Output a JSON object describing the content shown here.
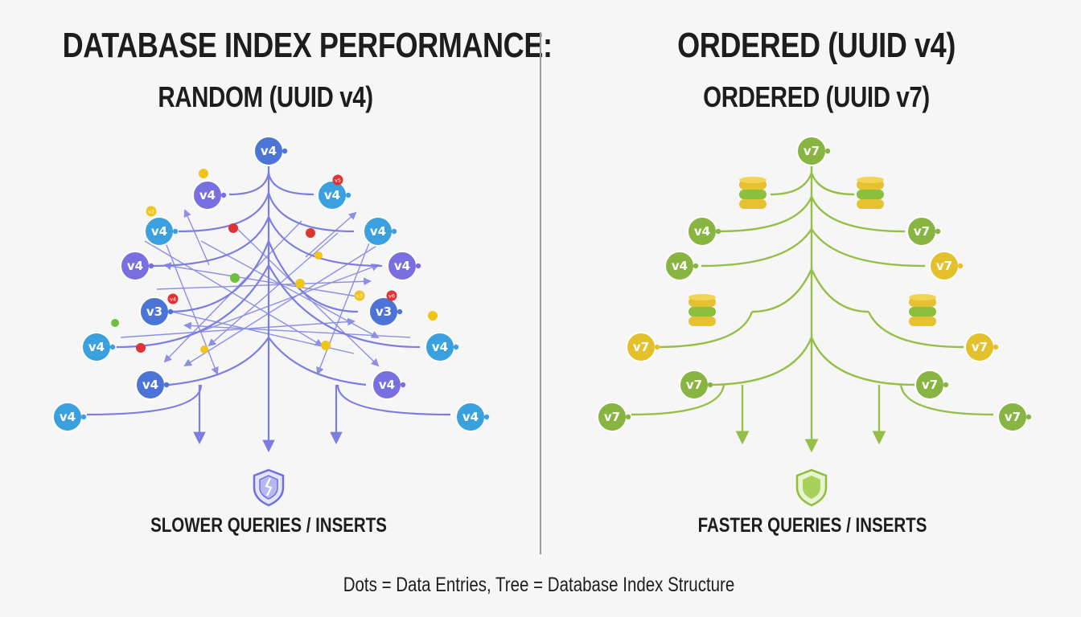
{
  "titles": {
    "main": "DATABASE INDEX PERFORMANCE:",
    "left_sub": "RANDOM (UUID v4)",
    "right": "ORDERED (UUID v4)",
    "right_sub": "ORDERED (UUID v7)"
  },
  "captions": {
    "left": "SLOWER QUERIES / INSERTS",
    "right": "FASTER QUERIES / INSERTS",
    "footer": "Dots = Data Entries, Tree = Database Index Structure"
  },
  "icons": {
    "left_result": "cracked-shield-icon",
    "right_result": "shield-icon",
    "database": "database-stack-icon"
  },
  "colors": {
    "left_tree": "#7b7ee0",
    "right_tree": "#95bf47",
    "node_blue": "#3aa0de",
    "node_purple": "#7a6fe0",
    "node_blue_dark": "#4c73d6",
    "node_green": "#88b542",
    "node_yellow": "#e4c12c",
    "dot_red": "#e03434",
    "dot_yellow": "#f0c419",
    "dot_green": "#6fbf3f"
  },
  "left_nodes": [
    {
      "label": "v4",
      "color": "node_blue_dark"
    },
    {
      "label": "v4",
      "color": "node_purple"
    },
    {
      "label": "v4",
      "color": "node_blue"
    },
    {
      "label": "v4",
      "color": "node_blue"
    },
    {
      "label": "v4",
      "color": "node_blue"
    },
    {
      "label": "v4",
      "color": "node_purple"
    },
    {
      "label": "v4",
      "color": "node_purple"
    },
    {
      "label": "v3",
      "color": "node_blue_dark"
    },
    {
      "label": "v3",
      "color": "node_blue_dark"
    },
    {
      "label": "v4",
      "color": "node_blue"
    },
    {
      "label": "v4",
      "color": "node_blue"
    },
    {
      "label": "v4",
      "color": "node_blue_dark"
    },
    {
      "label": "v4",
      "color": "node_purple"
    },
    {
      "label": "v4",
      "color": "node_blue"
    },
    {
      "label": "v4",
      "color": "node_blue"
    }
  ],
  "left_badges": [
    "v5",
    "v2",
    "v4",
    "v6",
    "v3"
  ],
  "right_nodes": [
    {
      "label": "v7",
      "color": "node_green"
    },
    {
      "label": "v4",
      "color": "node_green"
    },
    {
      "label": "v7",
      "color": "node_green"
    },
    {
      "label": "v4",
      "color": "node_green"
    },
    {
      "label": "v7",
      "color": "node_yellow"
    },
    {
      "label": "v7",
      "color": "node_yellow"
    },
    {
      "label": "v7",
      "color": "node_yellow"
    },
    {
      "label": "v7",
      "color": "node_green"
    },
    {
      "label": "v7",
      "color": "node_green"
    },
    {
      "label": "v7",
      "color": "node_green"
    },
    {
      "label": "v7",
      "color": "node_green"
    }
  ]
}
